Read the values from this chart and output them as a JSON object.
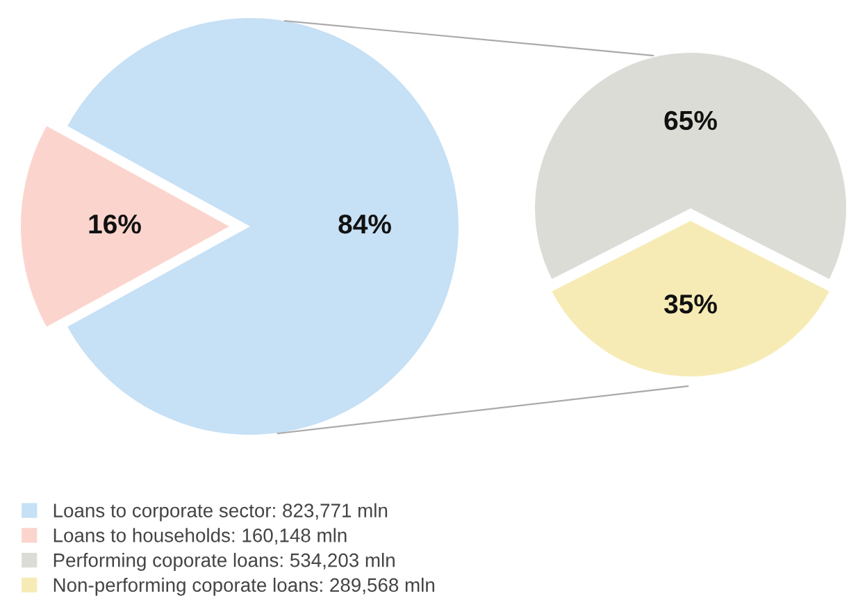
{
  "chart_data": [
    {
      "type": "pie",
      "categories": [
        "Loans to corporate sector: 823,771 mln",
        "Loans to households: 160,148 mln"
      ],
      "values": [
        84,
        16
      ],
      "colors": [
        "#c6e0f5",
        "#fbd5cd"
      ],
      "value_labels": [
        "84%",
        "16%"
      ],
      "legend": "bottom left"
    },
    {
      "type": "pie",
      "categories": [
        "Performing coporate loans: 534,203 mln",
        "Non-performing coporate loans: 289,568 mln"
      ],
      "values": [
        65,
        35
      ],
      "colors": [
        "#dcdcd7",
        "#f7ebb5"
      ],
      "value_labels": [
        "65%",
        "35%"
      ],
      "legend": "bottom left"
    }
  ]
}
